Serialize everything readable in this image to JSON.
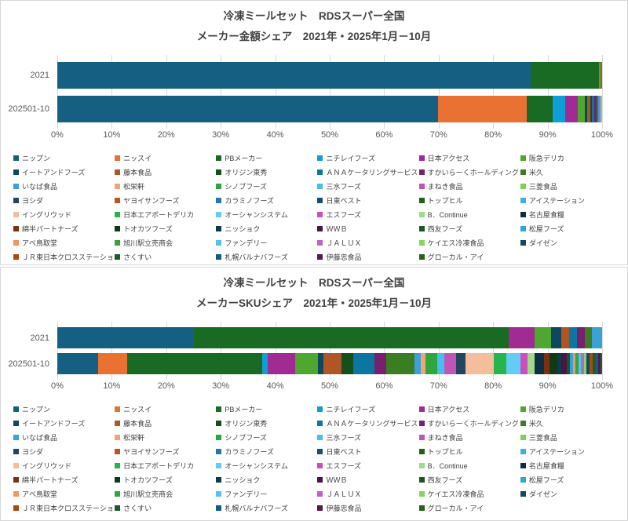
{
  "makers": [
    {
      "name": "ニップン",
      "color": "#156082"
    },
    {
      "name": "ニッスイ",
      "color": "#E97132"
    },
    {
      "name": "PBメーカー",
      "color": "#196B24"
    },
    {
      "name": "ニチレイフーズ",
      "color": "#0F9ED5"
    },
    {
      "name": "日本アクセス",
      "color": "#A02B93"
    },
    {
      "name": "阪急デリカ",
      "color": "#4EA72E"
    },
    {
      "name": "イートアンドフーズ",
      "color": "#0F4761"
    },
    {
      "name": "藤本食品",
      "color": "#AF5526"
    },
    {
      "name": "オリジン東秀",
      "color": "#13501B"
    },
    {
      "name": "ＡＮＡケータリングサービス",
      "color": "#0B76A0"
    },
    {
      "name": "すかいらーくホールディングス",
      "color": "#78206E"
    },
    {
      "name": "米久",
      "color": "#3B7D23"
    },
    {
      "name": "いなば食品",
      "color": "#3AA1D9"
    },
    {
      "name": "松栄軒",
      "color": "#F2A477"
    },
    {
      "name": "シノブフーズ",
      "color": "#2FA63C"
    },
    {
      "name": "三水フーズ",
      "color": "#47BFEE"
    },
    {
      "name": "まねき食品",
      "color": "#C155B5"
    },
    {
      "name": "三菱食品",
      "color": "#7BD151"
    },
    {
      "name": "ヨシダ",
      "color": "#24455E"
    },
    {
      "name": "ヤヨイサンフーズ",
      "color": "#C3511B"
    },
    {
      "name": "カラミノフーズ",
      "color": "#2278AC"
    },
    {
      "name": "日東ベスト",
      "color": "#134F77"
    },
    {
      "name": "トップヒル",
      "color": "#275E18"
    },
    {
      "name": "アイステーション",
      "color": "#41AEE4"
    },
    {
      "name": "イングリウッド",
      "color": "#F4BD9B"
    },
    {
      "name": "日本エアポートデリカ",
      "color": "#27B44D"
    },
    {
      "name": "オーシャンシステム",
      "color": "#63CCF5"
    },
    {
      "name": "エスフーズ",
      "color": "#CC4DBE"
    },
    {
      "name": "B．Continue",
      "color": "#A4D88A"
    },
    {
      "name": "名古屋食糧",
      "color": "#0D2F44"
    },
    {
      "name": "綿半パートナーズ",
      "color": "#7C3012"
    },
    {
      "name": "トオカツフーズ",
      "color": "#103A16"
    },
    {
      "name": "ニッショク",
      "color": "#0E3A50"
    },
    {
      "name": "ＷＷＢ",
      "color": "#4A1545"
    },
    {
      "name": "西友フーズ",
      "color": "#235223"
    },
    {
      "name": "松屋フーズ",
      "color": "#2BA7E0"
    },
    {
      "name": "アベ鳥取堂",
      "color": "#EF9763"
    },
    {
      "name": "旭川駅立売商会",
      "color": "#33A53B"
    },
    {
      "name": "ファンデリー",
      "color": "#55C1EF"
    },
    {
      "name": "ＪＡＬＵＸ",
      "color": "#BF63C8"
    },
    {
      "name": "ケイエス冷凍食品",
      "color": "#88D460"
    },
    {
      "name": "ダイゼン",
      "color": "#15485E"
    },
    {
      "name": "ＪＲ東日本クロスステーション",
      "color": "#A94A15"
    },
    {
      "name": "さくすい",
      "color": "#1E5A28"
    },
    {
      "name": "札幌バルナバフーズ",
      "color": "#0F5E80"
    },
    {
      "name": "伊藤忠食品",
      "color": "#531A52"
    },
    {
      "name": "グローカル・アイ",
      "color": "#28631C"
    }
  ],
  "chart_data": [
    {
      "type": "bar",
      "subtype": "horizontal-stacked-100pct",
      "title_line1": "冷凍ミールセット　RDSスーパー全国",
      "title_line2": "メーカー金額シェア　2021年・2025年1月－10月",
      "categories": [
        "2021",
        "202501-10"
      ],
      "x_ticks": [
        "0%",
        "10%",
        "20%",
        "30%",
        "40%",
        "50%",
        "60%",
        "70%",
        "80%",
        "90%",
        "100%"
      ],
      "xlim": [
        0,
        100
      ],
      "grid": "vertical-major",
      "legend_position": "bottom",
      "bars": [
        {
          "label": "2021",
          "segments": [
            {
              "maker": "ニップン",
              "share": 86.9
            },
            {
              "maker": "PBメーカー",
              "share": 12.5
            },
            {
              "maker": "阪急デリカ",
              "share": 0.3
            },
            {
              "maker": "藤本食品",
              "share": 0.3
            }
          ]
        },
        {
          "label": "202501-10",
          "segments": [
            {
              "maker": "ニップン",
              "share": 69.9
            },
            {
              "maker": "ニッスイ",
              "share": 16.3
            },
            {
              "maker": "PBメーカー",
              "share": 4.7
            },
            {
              "maker": "ニチレイフーズ",
              "share": 2.3
            },
            {
              "maker": "日本アクセス",
              "share": 2.3
            },
            {
              "maker": "阪急デリカ",
              "share": 1.3
            },
            {
              "maker": "イートアンドフーズ",
              "share": 0.5
            },
            {
              "maker": "藤本食品",
              "share": 0.5
            },
            {
              "maker": "オリジン東秀",
              "share": 0.4
            },
            {
              "maker": "ＡＮＡケータリングサービス",
              "share": 0.4
            },
            {
              "maker": "すかいらーくホールディングス",
              "share": 0.4
            },
            {
              "maker": "米久",
              "share": 0.3
            },
            {
              "maker": "いなば食品",
              "share": 0.4
            },
            {
              "maker": "松栄軒",
              "share": 0.3
            }
          ]
        }
      ]
    },
    {
      "type": "bar",
      "subtype": "horizontal-stacked-100pct",
      "title_line1": "冷凍ミールセット　RDSスーパー全国",
      "title_line2": "メーカーSKUシェア　2021年・2025年1月－10月",
      "categories": [
        "2021",
        "202501-10"
      ],
      "x_ticks": [
        "0%",
        "10%",
        "20%",
        "30%",
        "40%",
        "50%",
        "60%",
        "70%",
        "80%",
        "90%",
        "100%"
      ],
      "xlim": [
        0,
        100
      ],
      "grid": "vertical-major",
      "legend_position": "bottom",
      "bars": [
        {
          "label": "2021",
          "segments": [
            {
              "maker": "ニップン",
              "share": 25.0
            },
            {
              "maker": "PBメーカー",
              "share": 57.9
            },
            {
              "maker": "日本アクセス",
              "share": 4.7
            },
            {
              "maker": "阪急デリカ",
              "share": 3.1
            },
            {
              "maker": "イートアンドフーズ",
              "share": 1.8
            },
            {
              "maker": "藤本食品",
              "share": 1.5
            },
            {
              "maker": "ＡＮＡケータリングサービス",
              "share": 1.4
            },
            {
              "maker": "すかいらーくホールディングス",
              "share": 1.5
            },
            {
              "maker": "米久",
              "share": 1.3
            },
            {
              "maker": "いなば食品",
              "share": 1.8
            }
          ]
        },
        {
          "label": "202501-10",
          "segments": [
            {
              "maker": "ニップン",
              "share": 7.5
            },
            {
              "maker": "ニッスイ",
              "share": 5.3
            },
            {
              "maker": "PBメーカー",
              "share": 24.8
            },
            {
              "maker": "ニチレイフーズ",
              "share": 1.0
            },
            {
              "maker": "日本アクセス",
              "share": 5.0
            },
            {
              "maker": "阪急デリカ",
              "share": 4.3
            },
            {
              "maker": "イートアンドフーズ",
              "share": 0.9
            },
            {
              "maker": "藤本食品",
              "share": 3.3
            },
            {
              "maker": "オリジン東秀",
              "share": 2.3
            },
            {
              "maker": "ＡＮＡケータリングサービス",
              "share": 3.8
            },
            {
              "maker": "すかいらーくホールディングス",
              "share": 2.2
            },
            {
              "maker": "米久",
              "share": 5.2
            },
            {
              "maker": "いなば食品",
              "share": 1.2
            },
            {
              "maker": "松栄軒",
              "share": 0.8
            },
            {
              "maker": "シノブフーズ",
              "share": 2.1
            },
            {
              "maker": "三水フーズ",
              "share": 1.4
            },
            {
              "maker": "まねき食品",
              "share": 2.1
            },
            {
              "maker": "ヨシダ",
              "share": 1.7
            },
            {
              "maker": "イングリウッド",
              "share": 5.2
            },
            {
              "maker": "日本エアポートデリカ",
              "share": 2.4
            },
            {
              "maker": "オーシャンシステム",
              "share": 2.6
            },
            {
              "maker": "エスフーズ",
              "share": 1.3
            },
            {
              "maker": "B．Continue",
              "share": 1.3
            },
            {
              "maker": "名古屋食糧",
              "share": 1.7
            },
            {
              "maker": "綿半パートナーズ",
              "share": 1.0
            },
            {
              "maker": "トオカツフーズ",
              "share": 1.4
            },
            {
              "maker": "ニッショク",
              "share": 0.8
            },
            {
              "maker": "ＷＷＢ",
              "share": 0.9
            },
            {
              "maker": "西友フーズ",
              "share": 0.6
            },
            {
              "maker": "松屋フーズ",
              "share": 0.6
            },
            {
              "maker": "アベ鳥取堂",
              "share": 0.5
            },
            {
              "maker": "旭川駅立売商会",
              "share": 0.5
            },
            {
              "maker": "ファンデリー",
              "share": 0.5
            },
            {
              "maker": "ＪＡＬＵＸ",
              "share": 0.5
            },
            {
              "maker": "ケイエス冷凍食品",
              "share": 0.5
            },
            {
              "maker": "ダイゼン",
              "share": 0.5
            },
            {
              "maker": "ＪＲ東日本クロスステーション",
              "share": 0.6
            },
            {
              "maker": "さくすい",
              "share": 0.5
            },
            {
              "maker": "札幌バルナバフーズ",
              "share": 0.5
            },
            {
              "maker": "伊藤忠食品",
              "share": 0.4
            },
            {
              "maker": "グローカル・アイ",
              "share": 0.3
            }
          ]
        }
      ]
    }
  ]
}
